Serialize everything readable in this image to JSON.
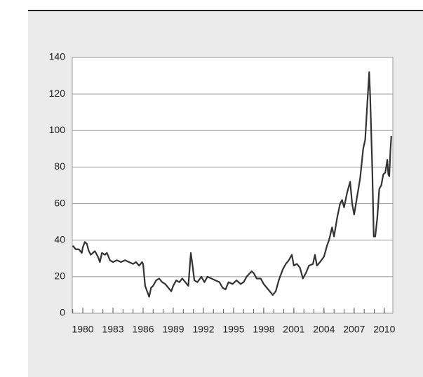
{
  "chart_data": {
    "type": "line",
    "x": [
      1979.0,
      1979.3,
      1979.6,
      1979.9,
      1980.0,
      1980.2,
      1980.4,
      1980.6,
      1980.8,
      1981.0,
      1981.2,
      1981.5,
      1981.7,
      1981.9,
      1982.2,
      1982.4,
      1982.7,
      1983.0,
      1983.4,
      1983.8,
      1984.2,
      1984.6,
      1985.0,
      1985.3,
      1985.6,
      1985.9,
      1986.0,
      1986.2,
      1986.4,
      1986.6,
      1986.8,
      1987.0,
      1987.3,
      1987.6,
      1987.9,
      1988.2,
      1988.5,
      1988.8,
      1989.0,
      1989.3,
      1989.6,
      1989.9,
      1990.2,
      1990.5,
      1990.75,
      1990.9,
      1991.1,
      1991.4,
      1991.8,
      1992.1,
      1992.4,
      1992.8,
      1993.2,
      1993.6,
      1993.9,
      1994.2,
      1994.5,
      1994.9,
      1995.3,
      1995.7,
      1996.0,
      1996.3,
      1996.8,
      1997.0,
      1997.3,
      1997.7,
      1998.0,
      1998.3,
      1998.6,
      1998.9,
      1999.2,
      1999.5,
      1999.9,
      2000.2,
      2000.5,
      2000.8,
      2001.0,
      2001.3,
      2001.6,
      2001.9,
      2002.2,
      2002.5,
      2002.9,
      2003.1,
      2003.3,
      2003.6,
      2004.0,
      2004.3,
      2004.5,
      2004.8,
      2005.0,
      2005.3,
      2005.6,
      2005.8,
      2006.0,
      2006.3,
      2006.6,
      2006.8,
      2007.0,
      2007.3,
      2007.6,
      2007.9,
      2008.1,
      2008.3,
      2008.5,
      2008.6,
      2008.8,
      2008.95,
      2009.1,
      2009.3,
      2009.5,
      2009.7,
      2009.9,
      2010.1,
      2010.3,
      2010.4,
      2010.5,
      2010.6,
      2010.7
    ],
    "series": [
      {
        "color": "#333333",
        "values": [
          37,
          35,
          35,
          33,
          36,
          39,
          38,
          34,
          32,
          33,
          34,
          31,
          28,
          33,
          32,
          33,
          29,
          28,
          29,
          28,
          29,
          28,
          27,
          28,
          26,
          28,
          27,
          15,
          12,
          9,
          14,
          15,
          18,
          19,
          17,
          16,
          14,
          12,
          15,
          18,
          17,
          19,
          17,
          15,
          33,
          27,
          18,
          17,
          20,
          17,
          20,
          19,
          18,
          17,
          14,
          13,
          17,
          16,
          18,
          16,
          17,
          20,
          23,
          22,
          19,
          19,
          16,
          14,
          12,
          10,
          12,
          18,
          24,
          27,
          29,
          32,
          26,
          27,
          25,
          19,
          22,
          26,
          27,
          32,
          26,
          28,
          31,
          37,
          40,
          47,
          42,
          52,
          60,
          62,
          58,
          66,
          72,
          60,
          54,
          64,
          74,
          90,
          95,
          114,
          132,
          118,
          80,
          42,
          42,
          52,
          68,
          70,
          76,
          77,
          84,
          76,
          75,
          88,
          97
        ]
      }
    ],
    "xlim": [
      1978.95,
      2010.85
    ],
    "ylim": [
      0,
      140
    ],
    "xticks": [
      1980,
      1983,
      1986,
      1989,
      1992,
      1995,
      1998,
      2001,
      2004,
      2007,
      2010
    ],
    "xminor_ticks": [
      1979,
      1980,
      1981,
      1982,
      1983,
      1984,
      1985,
      1986,
      1987,
      1988,
      1989,
      1990,
      1991,
      1992,
      1993,
      1994,
      1995,
      1996,
      1997,
      1998,
      1999,
      2000,
      2001,
      2002,
      2003,
      2004,
      2005,
      2006,
      2007,
      2008,
      2009,
      2010
    ],
    "yticks": [
      0,
      20,
      40,
      60,
      80,
      100,
      120,
      140
    ],
    "grid": true
  }
}
